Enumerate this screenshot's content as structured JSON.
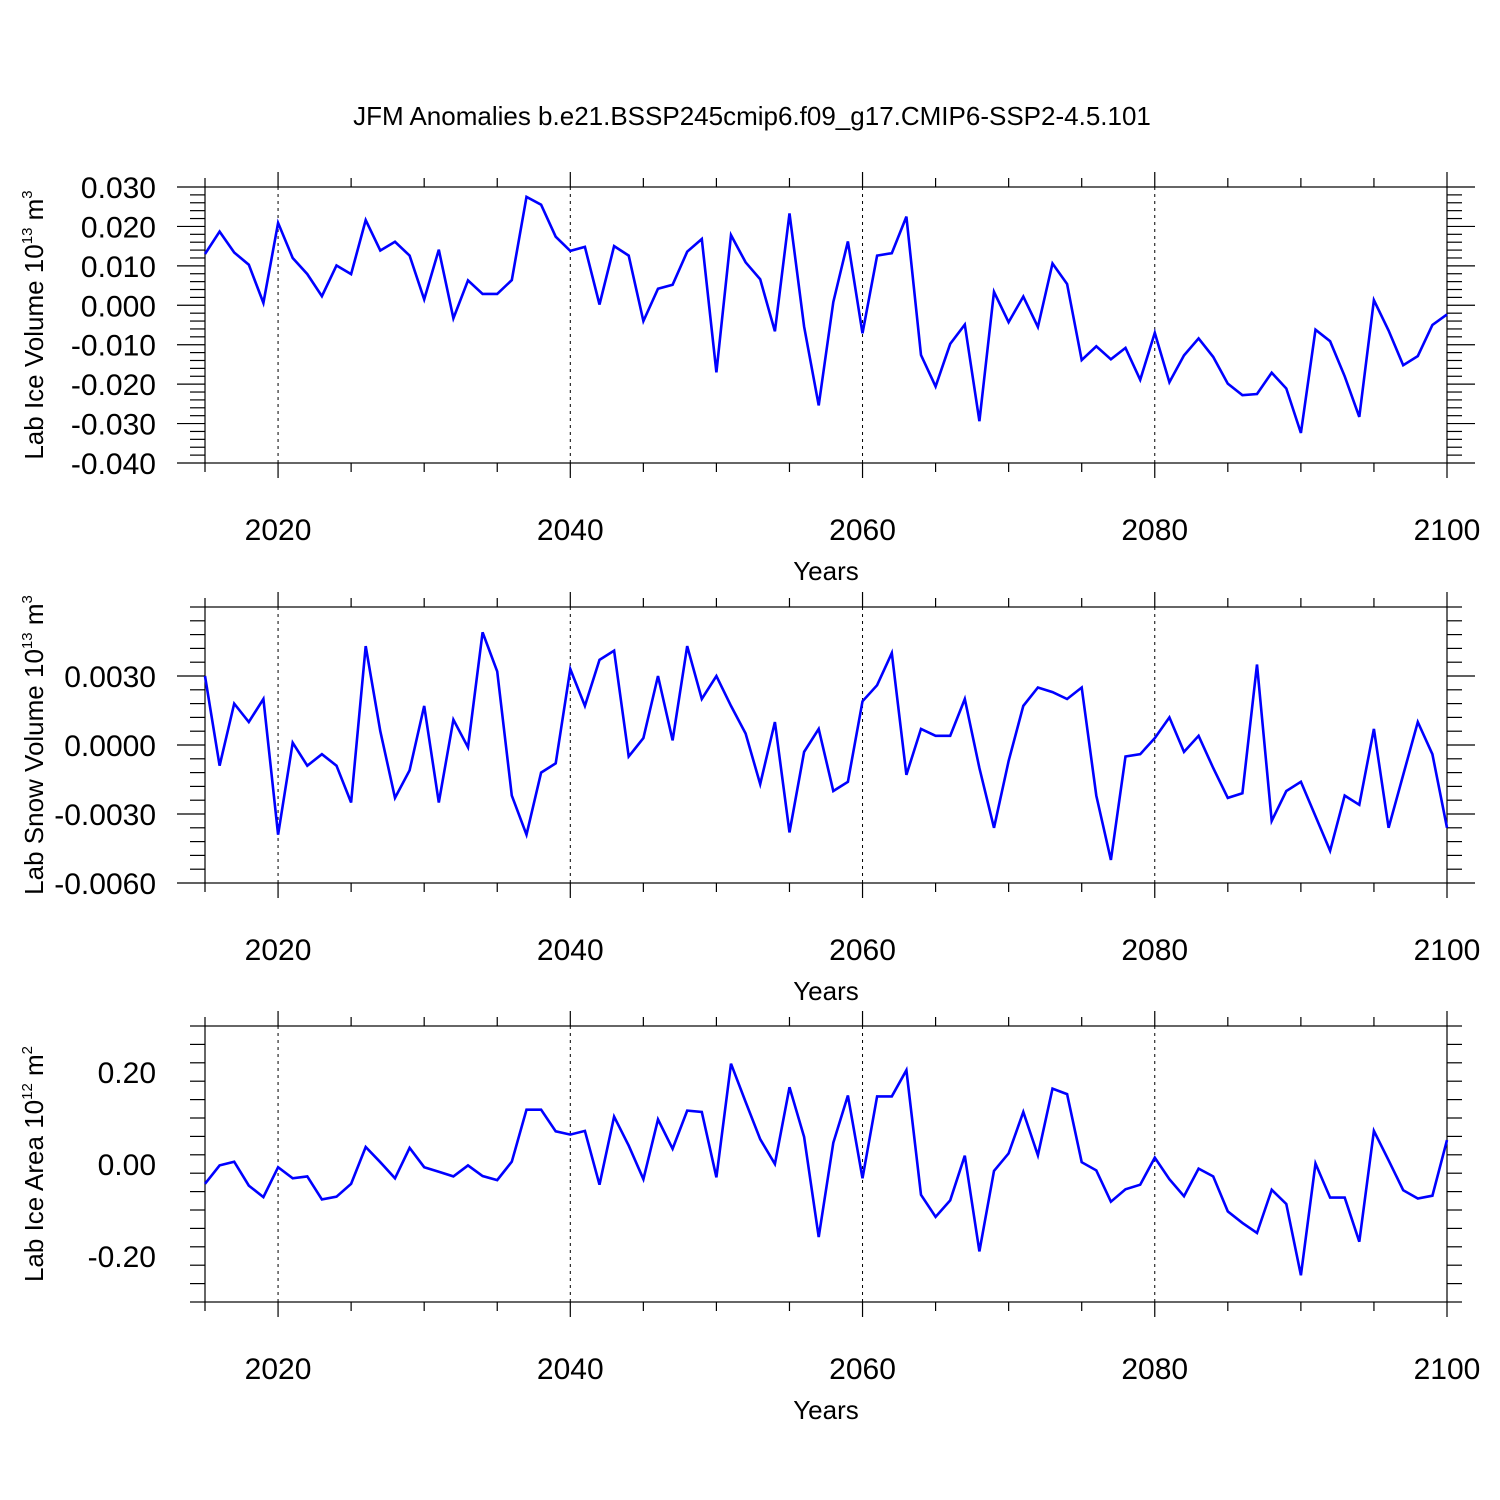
{
  "title": "JFM Anomalies b.e21.BSSP245cmip6.f09_g17.CMIP6-SSP2-4.5.101",
  "colors": {
    "line": "#0000ff",
    "axis": "#000000",
    "grid": "#000000"
  },
  "chart_data": [
    {
      "type": "line",
      "ylabel": {
        "text": "Lab Ice Volume 10",
        "sup": "13",
        "unit": " m",
        "unit_sup": "3"
      },
      "xlabel": "Years",
      "xlim": [
        2015,
        2100
      ],
      "ylim": [
        -0.04,
        0.03
      ],
      "yticks": [
        0.03,
        0.02,
        0.01,
        0.0,
        -0.01,
        -0.02,
        -0.03,
        -0.04
      ],
      "yticklabels": [
        "0.030",
        "0.020",
        "0.010",
        "0.000",
        "-0.010",
        "-0.020",
        "-0.030",
        "-0.040"
      ],
      "xticks": [
        2020,
        2040,
        2060,
        2080,
        2100
      ],
      "xticklabels": [
        "2020",
        "2040",
        "2060",
        "2080",
        "2100"
      ],
      "grid": "dashed vertical at major x ticks",
      "x_start": 2015,
      "series": [
        {
          "values": [
            0.013,
            0.0187,
            0.0134,
            0.0103,
            0.0006,
            0.0209,
            0.012,
            0.0079,
            0.0023,
            0.0101,
            0.0079,
            0.0216,
            0.0139,
            0.0161,
            0.0126,
            0.0015,
            0.0141,
            -0.0033,
            0.0063,
            0.0029,
            0.0029,
            0.0064,
            0.0275,
            0.0255,
            0.0174,
            0.0138,
            0.0148,
            0.0002,
            0.015,
            0.0126,
            -0.004,
            0.0042,
            0.0052,
            0.0136,
            0.0168,
            -0.017,
            0.0178,
            0.0109,
            0.0066,
            -0.0066,
            0.0233,
            -0.0054,
            -0.0254,
            0.0008,
            0.0162,
            -0.0071,
            0.0126,
            0.0132,
            0.0225,
            -0.0126,
            -0.0206,
            -0.0098,
            -0.0049,
            -0.0294,
            0.0034,
            -0.0043,
            0.0022,
            -0.0055,
            0.0106,
            0.0054,
            -0.0139,
            -0.0104,
            -0.0137,
            -0.0108,
            -0.0189,
            -0.007,
            -0.0195,
            -0.0127,
            -0.0084,
            -0.0131,
            -0.0199,
            -0.0228,
            -0.0225,
            -0.0171,
            -0.0211,
            -0.0324,
            -0.0062,
            -0.0091,
            -0.018,
            -0.0283,
            0.0013,
            -0.0064,
            -0.0152,
            -0.0129,
            -0.005,
            -0.0023
          ]
        }
      ]
    },
    {
      "type": "line",
      "ylabel": {
        "text": "Lab Snow Volume 10",
        "sup": "13",
        "unit": " m",
        "unit_sup": "3"
      },
      "xlabel": "Years",
      "xlim": [
        2015,
        2100
      ],
      "ylim": [
        -0.006,
        0.006
      ],
      "yticks": [
        0.003,
        0.0,
        -0.003,
        -0.006
      ],
      "yticklabels": [
        "0.0030",
        "0.0000",
        "-0.0030",
        "-0.0060"
      ],
      "xticks": [
        2020,
        2040,
        2060,
        2080,
        2100
      ],
      "xticklabels": [
        "2020",
        "2040",
        "2060",
        "2080",
        "2100"
      ],
      "grid": "dashed vertical at major x ticks",
      "x_start": 2015,
      "series": [
        {
          "values": [
            0.003,
            -0.0009,
            0.0018,
            0.001,
            0.002,
            -0.0039,
            0.0001,
            -0.0009,
            -0.0004,
            -0.0009,
            -0.0025,
            0.0043,
            0.0006,
            -0.0023,
            -0.0011,
            0.0017,
            -0.0025,
            0.0011,
            -0.0001,
            0.0049,
            0.0032,
            -0.0022,
            -0.0039,
            -0.0012,
            -0.0008,
            0.0033,
            0.0017,
            0.0037,
            0.0041,
            -0.0005,
            0.0003,
            0.003,
            0.0002,
            0.0043,
            0.002,
            0.003,
            0.0017,
            0.0005,
            -0.0017,
            0.001,
            -0.0038,
            -0.0003,
            0.0007,
            -0.002,
            -0.0016,
            0.0019,
            0.0026,
            0.004,
            -0.0013,
            0.0007,
            0.0004,
            0.0004,
            0.002,
            -0.001,
            -0.0036,
            -0.0007,
            0.0017,
            0.0025,
            0.0023,
            0.002,
            0.0025,
            -0.0022,
            -0.005,
            -0.0005,
            -0.0004,
            0.0003,
            0.0012,
            -0.0003,
            0.0004,
            -0.001,
            -0.0023,
            -0.0021,
            0.0035,
            -0.0033,
            -0.002,
            -0.0016,
            -0.0031,
            -0.0046,
            -0.0022,
            -0.0026,
            0.0007,
            -0.0036,
            -0.0013,
            0.001,
            -0.0004,
            -0.0036
          ]
        }
      ]
    },
    {
      "type": "line",
      "ylabel": {
        "text": "Lab Ice Area 10",
        "sup": "12",
        "unit": " m",
        "unit_sup": "2"
      },
      "xlabel": "Years",
      "xlim": [
        2015,
        2100
      ],
      "ylim": [
        -0.3,
        0.3
      ],
      "yticks": [
        0.2,
        0.0,
        -0.2
      ],
      "yticklabels": [
        "0.20",
        "0.00",
        "-0.20"
      ],
      "xticks": [
        2020,
        2040,
        2060,
        2080,
        2100
      ],
      "xticklabels": [
        "2020",
        "2040",
        "2060",
        "2080",
        "2100"
      ],
      "grid": "dashed vertical at major x ticks",
      "x_start": 2015,
      "series": [
        {
          "values": [
            -0.043,
            -0.003,
            0.005,
            -0.047,
            -0.072,
            -0.007,
            -0.031,
            -0.027,
            -0.077,
            -0.071,
            -0.043,
            0.037,
            0.004,
            -0.031,
            0.035,
            -0.007,
            -0.017,
            -0.027,
            -0.003,
            -0.026,
            -0.035,
            0.005,
            0.118,
            0.118,
            0.071,
            0.064,
            0.072,
            -0.045,
            0.103,
            0.04,
            -0.033,
            0.097,
            0.033,
            0.116,
            0.113,
            -0.029,
            0.218,
            0.135,
            0.054,
            0.0,
            0.167,
            0.059,
            -0.159,
            0.046,
            0.149,
            -0.031,
            0.147,
            0.147,
            0.204,
            -0.067,
            -0.115,
            -0.079,
            0.018,
            -0.19,
            -0.015,
            0.023,
            0.113,
            0.019,
            0.164,
            0.152,
            0.004,
            -0.014,
            -0.082,
            -0.055,
            -0.045,
            0.014,
            -0.033,
            -0.07,
            -0.01,
            -0.027,
            -0.103,
            -0.128,
            -0.15,
            -0.056,
            -0.087,
            -0.242,
            0.001,
            -0.073,
            -0.073,
            -0.169,
            0.072,
            0.008,
            -0.057,
            -0.075,
            -0.069,
            0.052
          ]
        }
      ]
    }
  ]
}
